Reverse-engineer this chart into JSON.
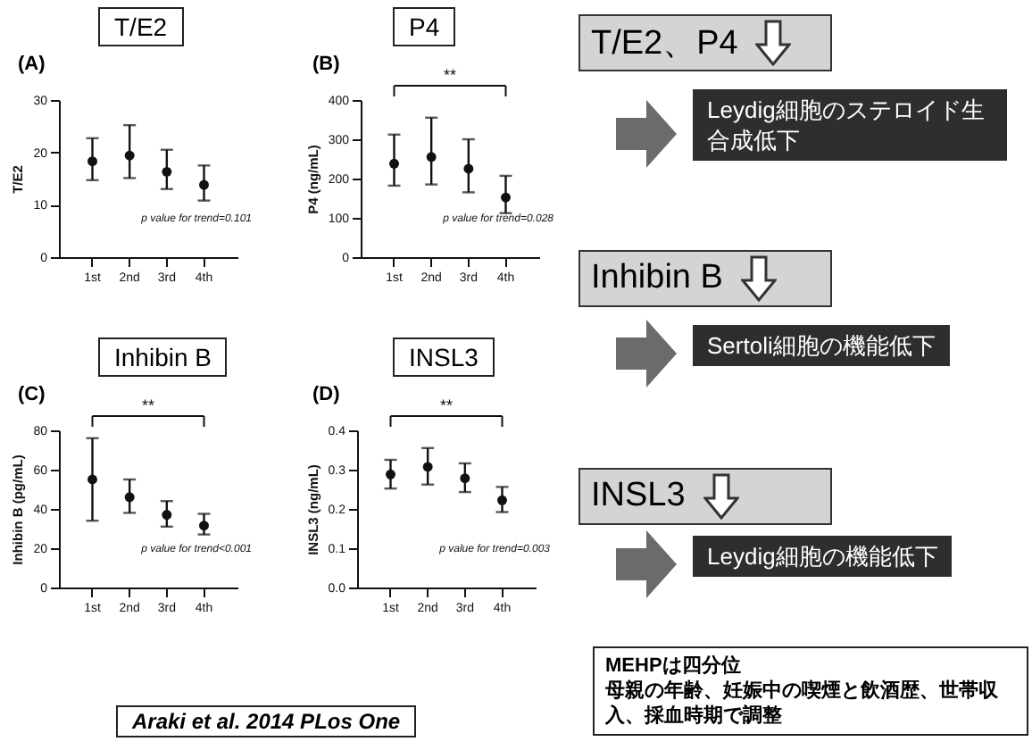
{
  "chart_data": [
    {
      "type": "scatter",
      "title": "T/E2",
      "subtitle": "(A)",
      "ylabel": "T/E2",
      "categories": [
        "1st",
        "2nd",
        "3rd",
        "4th"
      ],
      "ylim": [
        0,
        30
      ],
      "yticks": [
        0,
        10,
        20,
        30
      ],
      "marker": "circle",
      "color": "#111111",
      "values": [
        18.3,
        19.4,
        16.3,
        13.8
      ],
      "errors": [
        [
          14.7,
          22.7
        ],
        [
          15.1,
          25.2
        ],
        [
          13.0,
          20.5
        ],
        [
          10.8,
          17.5
        ]
      ],
      "annotations": [
        "p value for trend=0.101"
      ]
    },
    {
      "type": "scatter",
      "title": "P4",
      "subtitle": "(B)",
      "ylabel": "P4 (ng/mL)",
      "categories": [
        "1st",
        "2nd",
        "3rd",
        "4th"
      ],
      "ylim": [
        0,
        400
      ],
      "yticks": [
        0,
        100,
        200,
        300,
        400
      ],
      "marker": "circle",
      "color": "#111111",
      "values": [
        238,
        255,
        225,
        152
      ],
      "errors": [
        [
          182,
          312
        ],
        [
          185,
          355
        ],
        [
          165,
          300
        ],
        [
          112,
          207
        ]
      ],
      "annotations": [
        "p value for trend=0.028",
        "**"
      ]
    },
    {
      "type": "scatter",
      "title": "Inhibin B",
      "subtitle": "(C)",
      "ylabel": "Inhibin B (pg/mL)",
      "categories": [
        "1st",
        "2nd",
        "3rd",
        "4th"
      ],
      "ylim": [
        0,
        80
      ],
      "yticks": [
        0,
        20,
        40,
        60,
        80
      ],
      "marker": "circle",
      "color": "#111111",
      "values": [
        55,
        46,
        37,
        31.5
      ],
      "errors": [
        [
          34,
          76
        ],
        [
          38,
          55
        ],
        [
          31,
          44
        ],
        [
          27,
          37.5
        ]
      ],
      "annotations": [
        "p value for trend<0.001",
        "**",
        "Araki et al. 2014  PLos One"
      ]
    },
    {
      "type": "scatter",
      "title": "INSL3",
      "subtitle": "(D)",
      "ylabel": "INSL3 (ng/mL)",
      "categories": [
        "1st",
        "2nd",
        "3rd",
        "4th"
      ],
      "ylim": [
        0,
        0.4
      ],
      "yticks": [
        {
          "value": 0,
          "label": "0.0"
        },
        0.1,
        0.2,
        0.3,
        0.4
      ],
      "marker": "circle",
      "color": "#111111",
      "values": [
        0.288,
        0.307,
        0.278,
        0.222
      ],
      "errors": [
        [
          0.252,
          0.325
        ],
        [
          0.262,
          0.355
        ],
        [
          0.243,
          0.316
        ],
        [
          0.192,
          0.256
        ]
      ],
      "annotations": [
        "p value for trend=0.003",
        "**"
      ]
    },
    {
      "type": "other",
      "annotations": [
        "T/E2、P4",
        "Leydig細胞のステロイド生合成低下",
        "Inhibin B",
        "Sertoli細胞の機能低下",
        "INSL3",
        "Leydig細胞の機能低下",
        "MEHPは四分位",
        "母親の年齢、妊娠中の喫煙と飲酒歴、世帯収入、採血時期で調整"
      ]
    }
  ]
}
